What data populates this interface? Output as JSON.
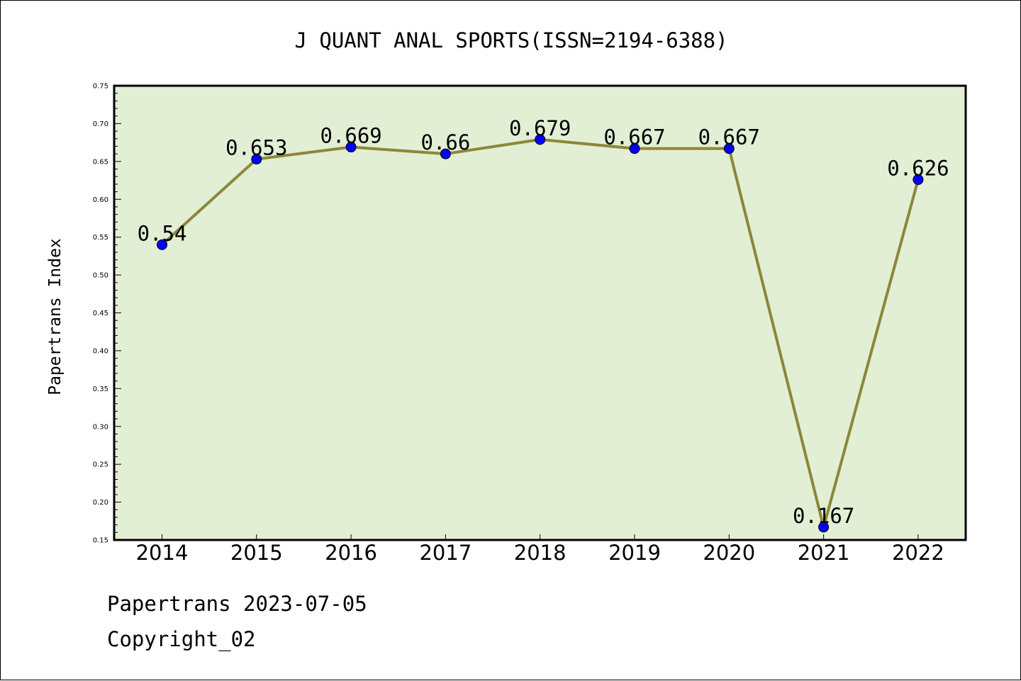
{
  "chart_data": {
    "type": "line",
    "title": "J QUANT ANAL SPORTS(ISSN=2194-6388)",
    "xlabel": "",
    "ylabel": "Papertrans Index",
    "categories": [
      "2014",
      "2015",
      "2016",
      "2017",
      "2018",
      "2019",
      "2020",
      "2021",
      "2022"
    ],
    "series": [
      {
        "values": [
          0.54,
          0.653,
          0.669,
          0.66,
          0.679,
          0.667,
          0.667,
          0.167,
          0.626
        ]
      }
    ],
    "data_labels": [
      "0.54",
      "0.653",
      "0.669",
      "0.66",
      "0.679",
      "0.667",
      "0.667",
      "0.167",
      "0.626"
    ],
    "ylim": [
      0.15,
      0.75
    ],
    "yticks": [
      "0.15",
      "0.20",
      "0.25",
      "0.30",
      "0.35",
      "0.40",
      "0.45",
      "0.50",
      "0.55",
      "0.60",
      "0.65",
      "0.70",
      "0.75"
    ],
    "grid": false,
    "legend": "none",
    "colors": {
      "plot_background": "#e2efd5",
      "line": "#8c873a",
      "marker": "#0000ff"
    }
  },
  "footer": {
    "line1": "Papertrans 2023-07-05",
    "line2": "Copyright_02"
  }
}
